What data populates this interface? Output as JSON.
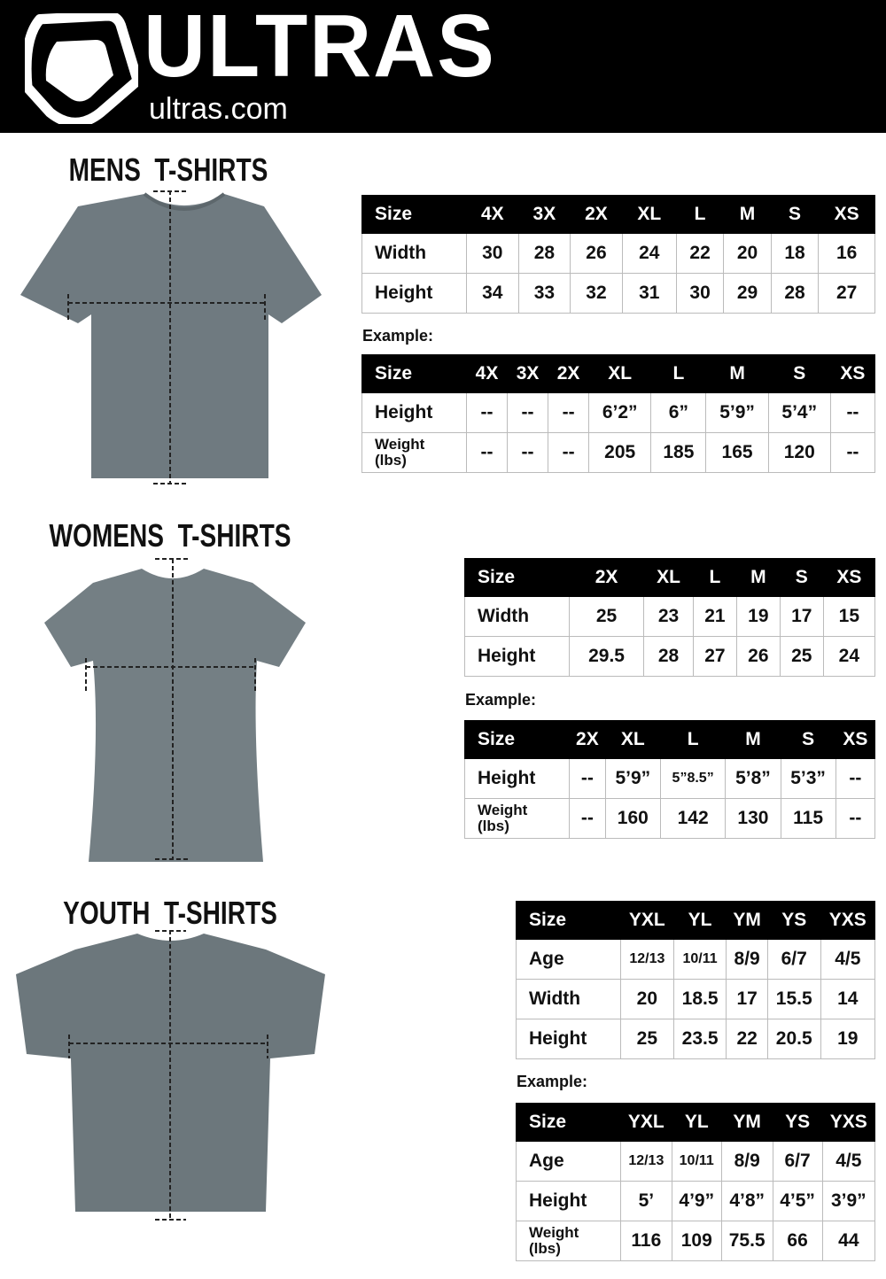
{
  "brand": {
    "name": "ULTRAS",
    "site": "ultras.com"
  },
  "colors": {
    "header_bg": "#000000",
    "shirt": "#6f7a80",
    "table_header": "#000000"
  },
  "sections": {
    "mens": {
      "title": "MENS  T-SHIRTS",
      "example_label": "Example:",
      "measure_table": {
        "header": [
          "Size",
          "4X",
          "3X",
          "2X",
          "XL",
          "L",
          "M",
          "S",
          "XS"
        ],
        "rows": [
          [
            "Width",
            "30",
            "28",
            "26",
            "24",
            "22",
            "20",
            "18",
            "16"
          ],
          [
            "Height",
            "34",
            "33",
            "32",
            "31",
            "30",
            "29",
            "28",
            "27"
          ]
        ]
      },
      "example_table": {
        "header": [
          "Size",
          "4X",
          "3X",
          "2X",
          "XL",
          "L",
          "M",
          "S",
          "XS"
        ],
        "rows": [
          [
            "Height",
            "--",
            "--",
            "--",
            "6’2”",
            "6”",
            "5’9”",
            "5’4”",
            "--"
          ],
          [
            "Weight\n(lbs)",
            "--",
            "--",
            "--",
            "205",
            "185",
            "165",
            "120",
            "--"
          ]
        ]
      }
    },
    "womens": {
      "title": "WOMENS  T-SHIRTS",
      "example_label": "Example:",
      "measure_table": {
        "header": [
          "Size",
          "2X",
          "XL",
          "L",
          "M",
          "S",
          "XS"
        ],
        "rows": [
          [
            "Width",
            "25",
            "23",
            "21",
            "19",
            "17",
            "15"
          ],
          [
            "Height",
            "29.5",
            "28",
            "27",
            "26",
            "25",
            "24"
          ]
        ]
      },
      "example_table": {
        "header": [
          "Size",
          "2X",
          "XL",
          "L",
          "M",
          "S",
          "XS"
        ],
        "rows": [
          [
            "Height",
            "--",
            "5’9”",
            "5”8.5”",
            "5’8”",
            "5’3”",
            "--"
          ],
          [
            "Weight\n(lbs)",
            "--",
            "160",
            "142",
            "130",
            "115",
            "--"
          ]
        ]
      }
    },
    "youth": {
      "title": "YOUTH  T-SHIRTS",
      "example_label": "Example:",
      "measure_table": {
        "header": [
          "Size",
          "YXL",
          "YL",
          "YM",
          "YS",
          "YXS"
        ],
        "rows": [
          [
            "Age",
            "12/13",
            "10/11",
            "8/9",
            "6/7",
            "4/5"
          ],
          [
            "Width",
            "20",
            "18.5",
            "17",
            "15.5",
            "14"
          ],
          [
            "Height",
            "25",
            "23.5",
            "22",
            "20.5",
            "19"
          ]
        ]
      },
      "example_table": {
        "header": [
          "Size",
          "YXL",
          "YL",
          "YM",
          "YS",
          "YXS"
        ],
        "rows": [
          [
            "Age",
            "12/13",
            "10/11",
            "8/9",
            "6/7",
            "4/5"
          ],
          [
            "Height",
            "5’",
            "4’9”",
            "4’8”",
            "4’5”",
            "3’9”"
          ],
          [
            "Weight\n(lbs)",
            "116",
            "109",
            "75.5",
            "66",
            "44"
          ]
        ]
      }
    }
  }
}
